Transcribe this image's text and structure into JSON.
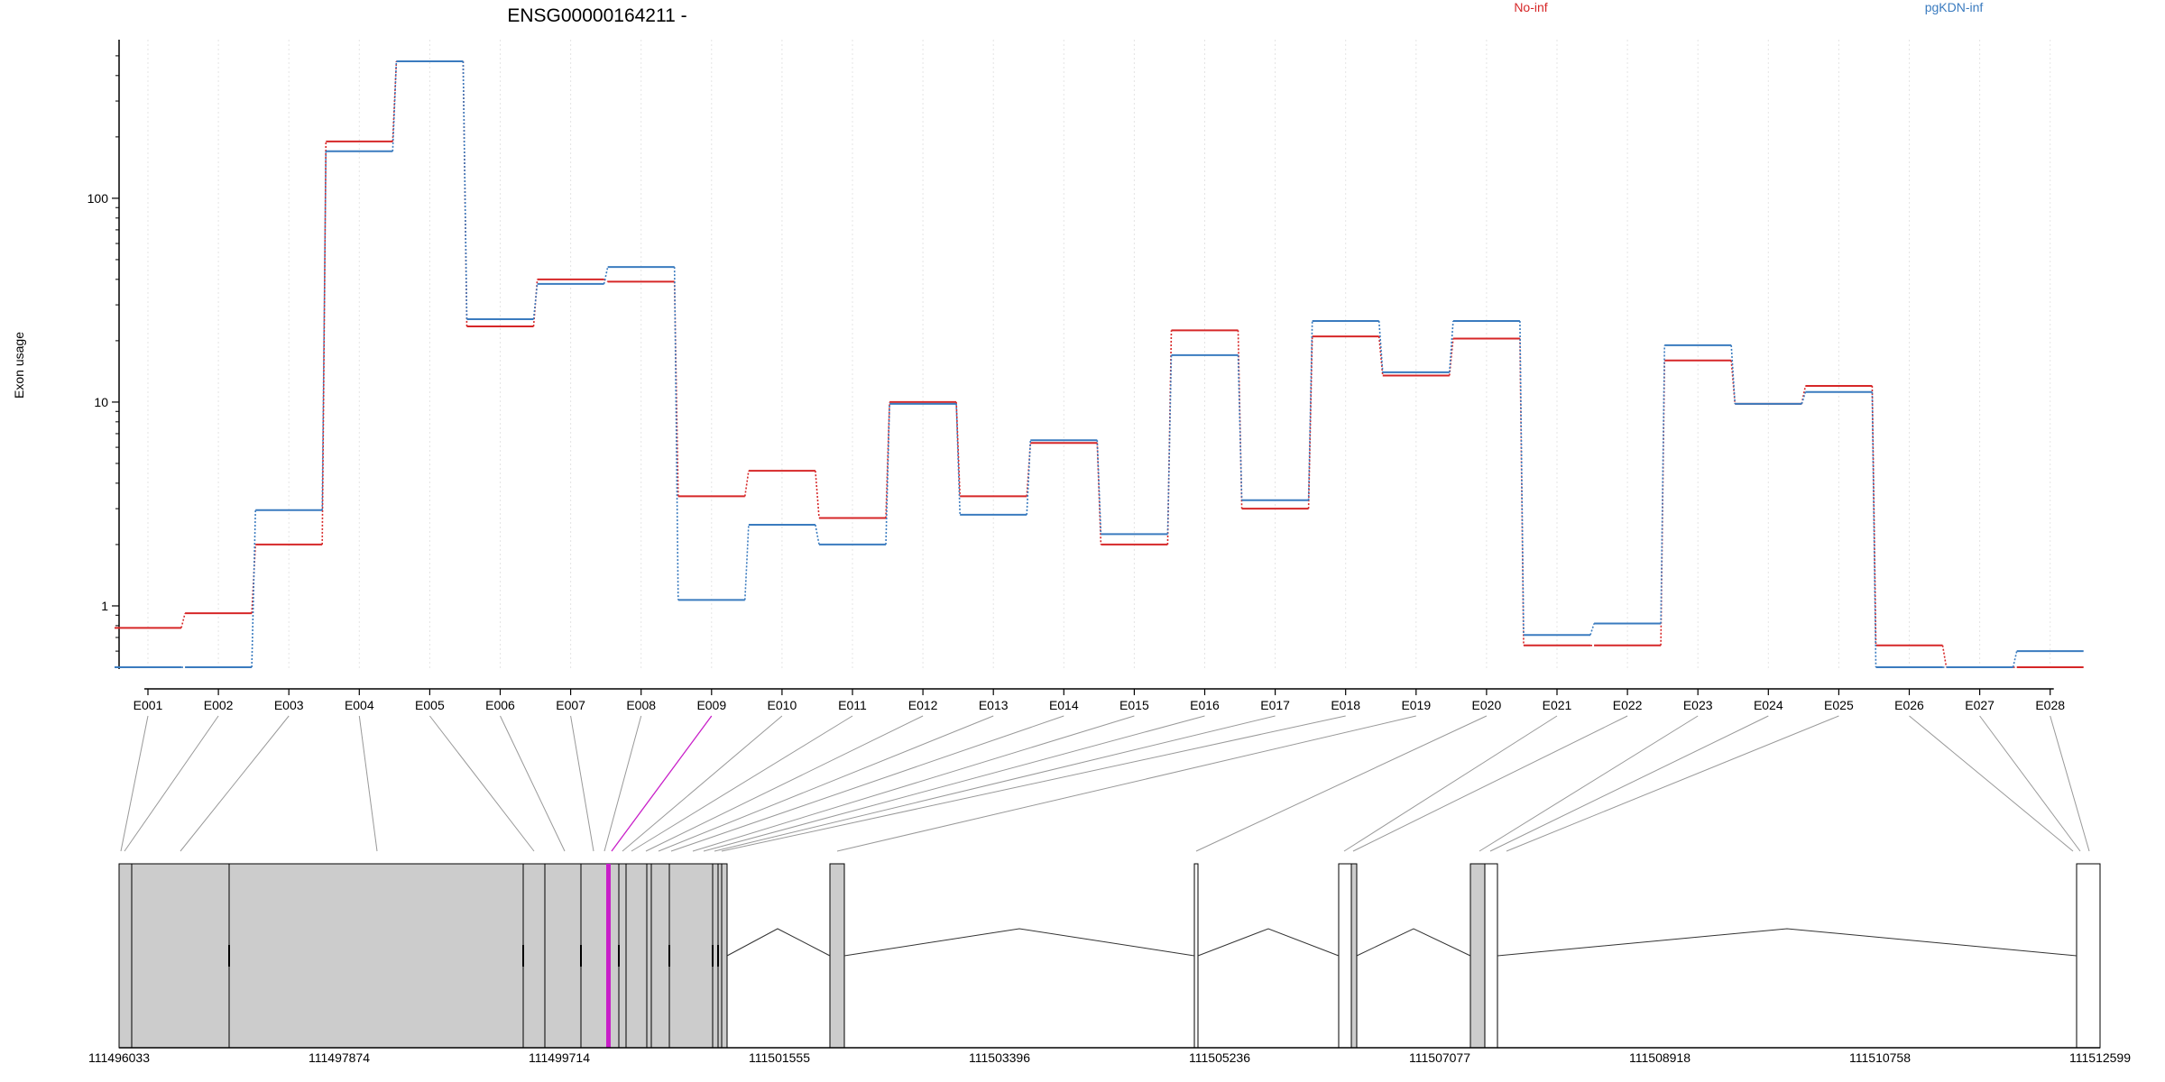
{
  "chart_data": {
    "type": "line",
    "title": "ENSG00000164211 -",
    "ylabel": "Exon usage",
    "yscale": "log",
    "ylim": [
      0.49,
      600
    ],
    "yticks": [
      1,
      10,
      100
    ],
    "ytick_labels": [
      "1",
      "10",
      "100"
    ],
    "grid": "vertical dashed",
    "legend_placement": "top",
    "categories": [
      "E001",
      "E002",
      "E003",
      "E004",
      "E005",
      "E006",
      "E007",
      "E008",
      "E009",
      "E010",
      "E011",
      "E012",
      "E013",
      "E014",
      "E015",
      "E016",
      "E017",
      "E018",
      "E019",
      "E020",
      "E021",
      "E022",
      "E023",
      "E024",
      "E025",
      "E026",
      "E027",
      "E028"
    ],
    "highlighted_exon": "E009",
    "series": [
      {
        "name": "No-inf",
        "color": "#d62728",
        "values": [
          0.78,
          0.92,
          2.0,
          190,
          470,
          23.5,
          40,
          39,
          3.45,
          4.6,
          2.7,
          10.0,
          3.45,
          6.3,
          2.0,
          22.5,
          3.0,
          21,
          13.5,
          20.5,
          0.64,
          0.64,
          16,
          9.8,
          12,
          0.64,
          0.5,
          0.5
        ]
      },
      {
        "name": "pgKDN-inf",
        "color": "#3a7bbf",
        "values": [
          0.5,
          0.5,
          2.95,
          170,
          470,
          25.5,
          38,
          46,
          1.07,
          2.5,
          2.0,
          9.8,
          2.8,
          6.5,
          2.25,
          17,
          3.3,
          25,
          14,
          25,
          0.72,
          0.82,
          19,
          9.8,
          11.2,
          0.5,
          0.5,
          0.6
        ]
      }
    ],
    "gene_model": {
      "coordinate_ticks": [
        "111496033",
        "111497874",
        "111499714",
        "111501555",
        "111503396",
        "111505236",
        "111507077",
        "111508918",
        "111510758",
        "111512599"
      ],
      "highlight_color": "#c81fc8",
      "exon_fill": "#cccccc"
    }
  }
}
